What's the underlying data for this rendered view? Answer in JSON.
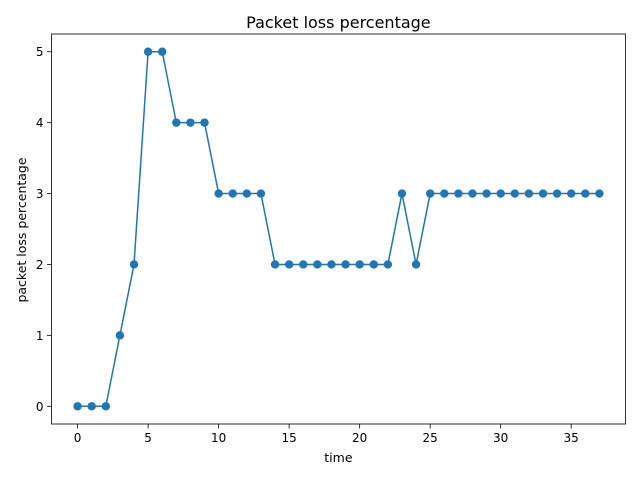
{
  "chart_data": {
    "type": "line",
    "title": "Packet loss percentage",
    "xlabel": "time",
    "ylabel": "packet loss percentage",
    "xlim": [
      -1.85,
      38.85
    ],
    "ylim": [
      -0.25,
      5.25
    ],
    "xticks": [
      0,
      5,
      10,
      15,
      20,
      25,
      30,
      35
    ],
    "yticks": [
      0,
      1,
      2,
      3,
      4,
      5
    ],
    "grid": false,
    "marker": "circle",
    "series": [
      {
        "color": "#1f77b4",
        "x": [
          0,
          1,
          2,
          3,
          4,
          5,
          6,
          7,
          8,
          9,
          10,
          11,
          12,
          13,
          14,
          15,
          16,
          17,
          18,
          19,
          20,
          21,
          22,
          23,
          24,
          25,
          26,
          27,
          28,
          29,
          30,
          31,
          32,
          33,
          34,
          35,
          36,
          37
        ],
        "values": [
          0,
          0,
          0,
          1,
          2,
          5,
          5,
          4,
          4,
          4,
          3,
          3,
          3,
          3,
          2,
          2,
          2,
          2,
          2,
          2,
          2,
          2,
          2,
          3,
          2,
          3,
          3,
          3,
          3,
          3,
          3,
          3,
          3,
          3,
          3,
          3,
          3,
          3
        ]
      }
    ]
  }
}
